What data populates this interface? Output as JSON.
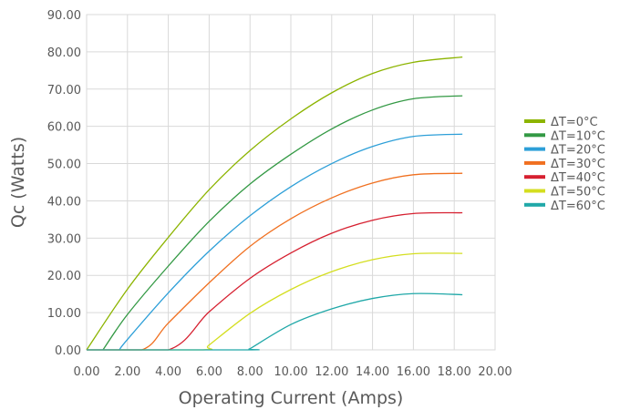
{
  "chart_data": {
    "type": "line",
    "xlabel": "Operating Current (Amps)",
    "ylabel": "Qc (Watts)",
    "xlim": [
      0,
      20
    ],
    "ylim": [
      0,
      90
    ],
    "x_ticks": [
      "0.00",
      "2.00",
      "4.00",
      "6.00",
      "8.00",
      "10.00",
      "12.00",
      "14.00",
      "16.00",
      "18.00",
      "20.00"
    ],
    "y_ticks": [
      "0.00",
      "10.00",
      "20.00",
      "30.00",
      "40.00",
      "50.00",
      "60.00",
      "70.00",
      "80.00",
      "90.00"
    ],
    "grid": true,
    "legend_position": "right",
    "series": [
      {
        "name": "ΔT=0°C",
        "color": "#8cb400",
        "x": [
          0,
          2,
          4,
          6,
          8,
          10,
          12,
          14,
          16,
          18.4
        ],
        "values": [
          0,
          16.3,
          30.2,
          43.0,
          53.5,
          62.0,
          69.0,
          74.2,
          77.2,
          78.6
        ]
      },
      {
        "name": "ΔT=10°C",
        "color": "#339944",
        "x": [
          0.8,
          2,
          4,
          6,
          8,
          10,
          12,
          14,
          16,
          18.4
        ],
        "values": [
          0,
          9.5,
          22.5,
          34.5,
          44.5,
          52.5,
          59.3,
          64.4,
          67.4,
          68.2
        ]
      },
      {
        "name": "ΔT=20°C",
        "color": "#2d9fd8",
        "x": [
          1.6,
          2,
          4,
          6,
          8,
          10,
          12,
          14,
          16,
          18.4
        ],
        "values": [
          0,
          2.8,
          15.3,
          26.5,
          36.0,
          43.8,
          50.0,
          54.6,
          57.3,
          57.9
        ]
      },
      {
        "name": "ΔT=30°C",
        "color": "#f07020",
        "x": [
          0,
          2.7,
          4,
          6,
          8,
          10,
          12,
          14,
          16,
          18.4
        ],
        "values": [
          0,
          0,
          7.2,
          18.0,
          27.8,
          35.2,
          40.8,
          44.8,
          47.0,
          47.4
        ]
      },
      {
        "name": "ΔT=40°C",
        "color": "#d62030",
        "x": [
          0,
          4.0,
          6,
          8,
          10,
          12,
          14,
          16,
          18.4
        ],
        "values": [
          0,
          0,
          10.2,
          19.2,
          26.0,
          31.3,
          34.8,
          36.6,
          36.8
        ]
      },
      {
        "name": "ΔT=50°C",
        "color": "#d4de20",
        "x": [
          0,
          5.7,
          6,
          8,
          10,
          12,
          14,
          16,
          18.4
        ],
        "values": [
          0,
          0,
          1.3,
          9.8,
          16.2,
          21.0,
          24.2,
          25.8,
          25.9
        ]
      },
      {
        "name": "ΔT=60°C",
        "color": "#20a8a8",
        "x": [
          0,
          7.9,
          8,
          10,
          12,
          14,
          16,
          18.4
        ],
        "values": [
          0,
          0,
          0.3,
          6.8,
          11.0,
          13.8,
          15.1,
          14.8
        ]
      }
    ]
  }
}
